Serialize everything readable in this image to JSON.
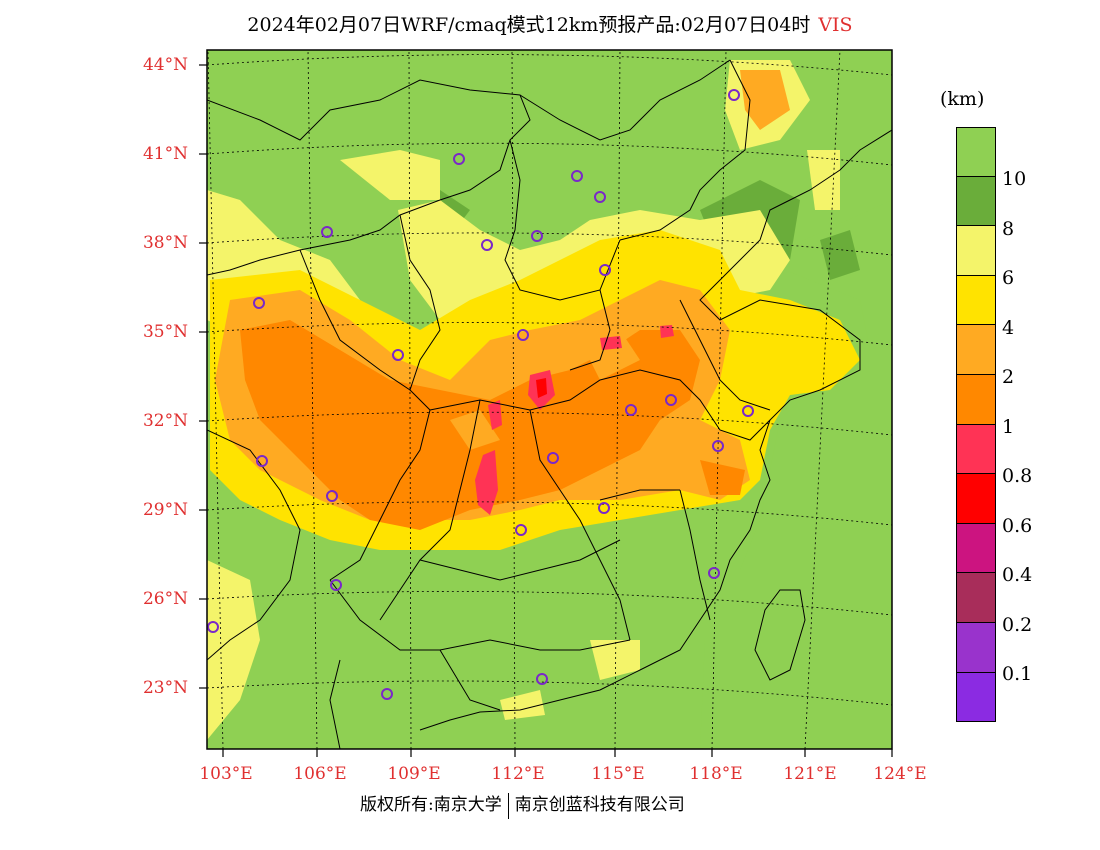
{
  "title": {
    "main": "2024年02月07日WRF/cmaq模式12km预报产品:02月07日04时",
    "variable": "VIS"
  },
  "lat_labels": [
    "44°N",
    "41°N",
    "38°N",
    "35°N",
    "32°N",
    "29°N",
    "26°N",
    "23°N"
  ],
  "lon_labels": [
    "103°E",
    "106°E",
    "109°E",
    "112°E",
    "115°E",
    "118°E",
    "121°E",
    "124°E"
  ],
  "legend": {
    "unit": "(km)",
    "colors": [
      "#8fd053",
      "#6aad3a",
      "#f4f46a",
      "#ffe300",
      "#ffaa22",
      "#ff8800",
      "#ff3355",
      "#ff0000",
      "#cc1480",
      "#a82d5a",
      "#9933cc",
      "#8b2be2"
    ],
    "labels": [
      "10",
      "8",
      "6",
      "4",
      "2",
      "1",
      "0.8",
      "0.6",
      "0.4",
      "0.2",
      "0.1"
    ]
  },
  "footer": {
    "left": "版权所有:南京大学",
    "right": "南京创蓝科技有限公司"
  }
}
